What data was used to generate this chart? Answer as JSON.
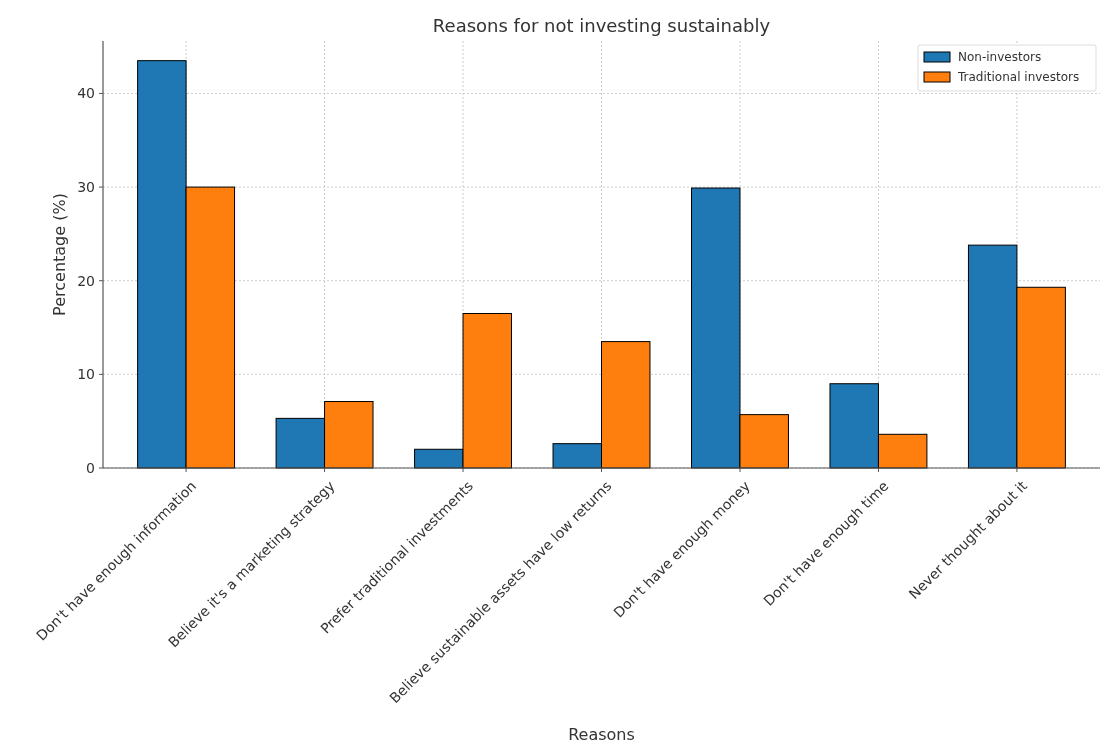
{
  "chart_data": {
    "type": "bar",
    "title": "Reasons for not investing sustainably",
    "xlabel": "Reasons",
    "ylabel": "Percentage (%)",
    "categories": [
      "Don't have enough information",
      "Believe it's a marketing strategy",
      "Prefer traditional investments",
      "Believe sustainable assets have low returns",
      "Don't have enough money",
      "Don't have enough time",
      "Never thought about it"
    ],
    "series": [
      {
        "name": "Non-investors",
        "color": "#1f77b4",
        "values": [
          43.5,
          5.3,
          2.0,
          2.6,
          29.9,
          9.0,
          23.8
        ]
      },
      {
        "name": "Traditional investors",
        "color": "#ff7f0e",
        "values": [
          30.0,
          7.1,
          16.5,
          13.5,
          5.7,
          3.6,
          19.3
        ]
      }
    ],
    "ylim": [
      0,
      45.6
    ],
    "yticks": [
      0,
      10,
      20,
      30,
      40
    ],
    "grid": true,
    "legend": "top right"
  }
}
